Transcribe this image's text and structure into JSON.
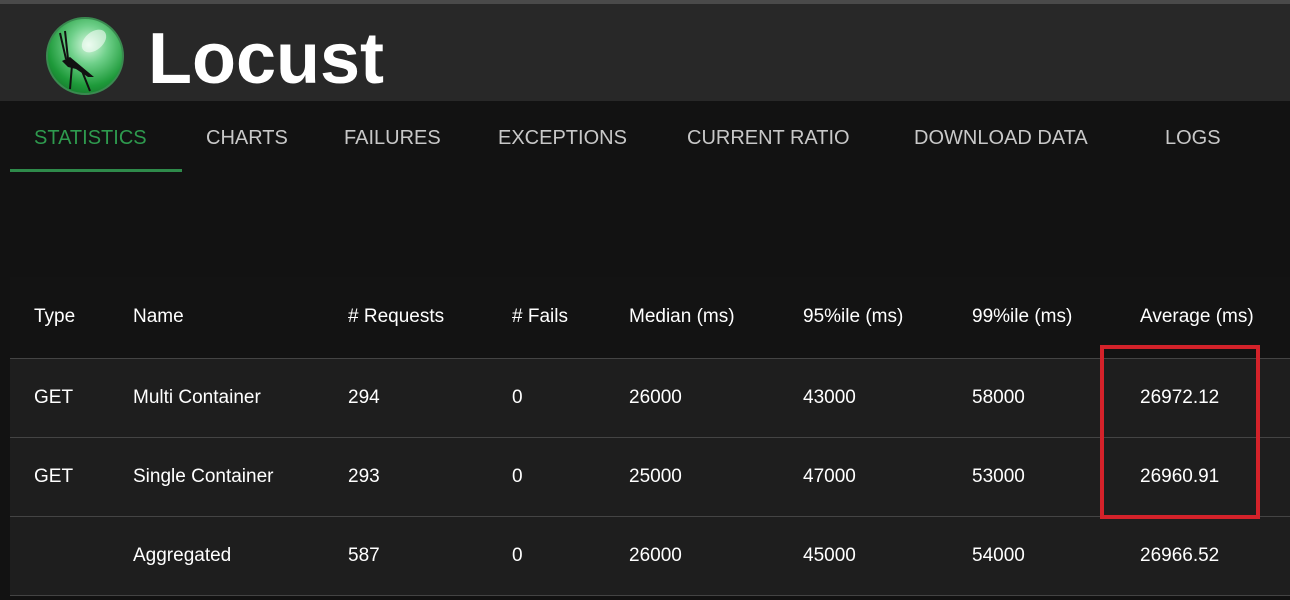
{
  "app": {
    "title": "Locust",
    "logo": "locust-logo"
  },
  "nav": {
    "tabs": [
      {
        "label": "STATISTICS",
        "active": true
      },
      {
        "label": "CHARTS"
      },
      {
        "label": "FAILURES"
      },
      {
        "label": "EXCEPTIONS"
      },
      {
        "label": "CURRENT RATIO"
      },
      {
        "label": "DOWNLOAD DATA"
      },
      {
        "label": "LOGS"
      }
    ]
  },
  "colors": {
    "accent": "#2e9a4e",
    "highlight": "#d4222a"
  },
  "table": {
    "headers": [
      "Type",
      "Name",
      "# Requests",
      "# Fails",
      "Median (ms)",
      "95%ile (ms)",
      "99%ile (ms)",
      "Average (ms)"
    ],
    "rows": [
      [
        "GET",
        "Multi Container",
        "294",
        "0",
        "26000",
        "43000",
        "58000",
        "26972.12"
      ],
      [
        "GET",
        "Single Container",
        "293",
        "0",
        "25000",
        "47000",
        "53000",
        "26960.91"
      ],
      [
        "",
        "Aggregated",
        "587",
        "0",
        "26000",
        "45000",
        "54000",
        "26966.52"
      ]
    ]
  }
}
